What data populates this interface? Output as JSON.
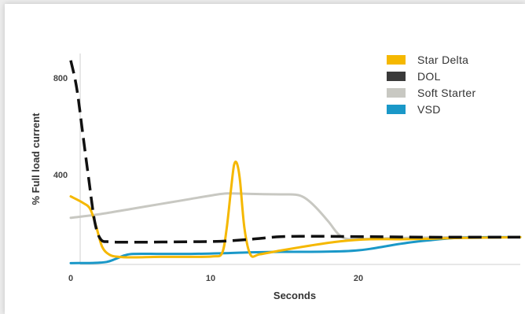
{
  "chart_data": {
    "type": "line",
    "title": "",
    "xlabel": "Seconds",
    "ylabel": "% Full load current",
    "xlim": [
      0,
      30
    ],
    "ylim": [
      0,
      850
    ],
    "x_ticks": [
      "0",
      "10",
      "20"
    ],
    "y_ticks": [
      "400",
      "800"
    ],
    "grid": false,
    "legend_position": "top-right",
    "series": [
      {
        "name": "Star Delta",
        "color": "#f5b800",
        "style": "solid",
        "points": [
          [
            0,
            270
          ],
          [
            0.8,
            245
          ],
          [
            1.3,
            220
          ],
          [
            1.7,
            150
          ],
          [
            2.1,
            70
          ],
          [
            2.6,
            38
          ],
          [
            3.2,
            30
          ],
          [
            4,
            28
          ],
          [
            6,
            30
          ],
          [
            8,
            30
          ],
          [
            9.5,
            32
          ],
          [
            10.1,
            45
          ],
          [
            10.4,
            140
          ],
          [
            10.7,
            300
          ],
          [
            10.9,
            395
          ],
          [
            11.1,
            400
          ],
          [
            11.3,
            330
          ],
          [
            11.6,
            140
          ],
          [
            12,
            38
          ],
          [
            12.6,
            40
          ],
          [
            14,
            55
          ],
          [
            16,
            75
          ],
          [
            18,
            92
          ],
          [
            20,
            100
          ],
          [
            22,
            100
          ],
          [
            24,
            102
          ],
          [
            26,
            105
          ],
          [
            30,
            108
          ]
        ]
      },
      {
        "name": "DOL",
        "color": "#111111",
        "style": "dashed",
        "points": [
          [
            0,
            810
          ],
          [
            0.4,
            700
          ],
          [
            0.8,
            520
          ],
          [
            1.2,
            340
          ],
          [
            1.6,
            170
          ],
          [
            2,
            100
          ],
          [
            2.6,
            90
          ],
          [
            4,
            88
          ],
          [
            8,
            90
          ],
          [
            10,
            92
          ],
          [
            12,
            100
          ],
          [
            14,
            110
          ],
          [
            16,
            112
          ],
          [
            20,
            110
          ],
          [
            24,
            108
          ],
          [
            26,
            108
          ],
          [
            30,
            108
          ]
        ]
      },
      {
        "name": "Soft Starter",
        "color": "#c8c8c2",
        "style": "solid",
        "points": [
          [
            0,
            185
          ],
          [
            2,
            200
          ],
          [
            4,
            220
          ],
          [
            6,
            240
          ],
          [
            8,
            260
          ],
          [
            9.5,
            275
          ],
          [
            10.5,
            282
          ],
          [
            12,
            280
          ],
          [
            14,
            278
          ],
          [
            15,
            277
          ],
          [
            15.6,
            265
          ],
          [
            16.3,
            230
          ],
          [
            17.2,
            170
          ],
          [
            17.9,
            118
          ],
          [
            18.6,
            100
          ],
          [
            20,
            102
          ],
          [
            22,
            105
          ],
          [
            26,
            108
          ],
          [
            30,
            108
          ]
        ]
      },
      {
        "name": "VSD",
        "color": "#1a98c8",
        "style": "solid",
        "points": [
          [
            0,
            5
          ],
          [
            1.5,
            6
          ],
          [
            2.4,
            10
          ],
          [
            3,
            22
          ],
          [
            3.6,
            36
          ],
          [
            4.2,
            42
          ],
          [
            6,
            42
          ],
          [
            8,
            42
          ],
          [
            10,
            44
          ],
          [
            12,
            48
          ],
          [
            14,
            50
          ],
          [
            16,
            50
          ],
          [
            18,
            52
          ],
          [
            19,
            55
          ],
          [
            20,
            62
          ],
          [
            21,
            72
          ],
          [
            22,
            82
          ],
          [
            23,
            90
          ],
          [
            24,
            96
          ],
          [
            25,
            102
          ],
          [
            26,
            106
          ],
          [
            28,
            108
          ],
          [
            30,
            108
          ]
        ]
      }
    ]
  }
}
